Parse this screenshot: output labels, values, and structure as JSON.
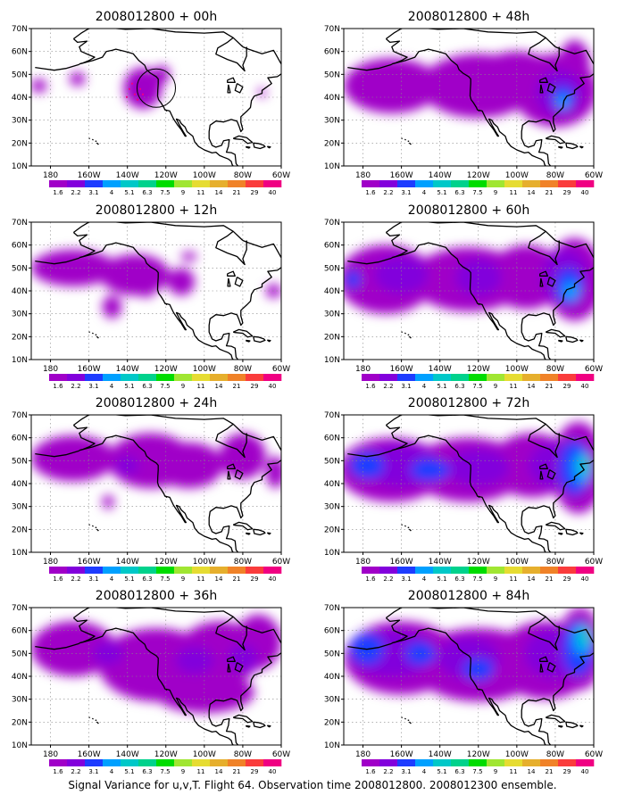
{
  "figure": {
    "caption": "Signal Variance for u,v,T. Flight 64. Observation time 2008012800. 2008012300 ensemble.",
    "lon_labels": [
      "180",
      "160W",
      "140W",
      "120W",
      "100W",
      "80W",
      "60W"
    ],
    "lat_labels": [
      "10N",
      "20N",
      "30N",
      "40N",
      "50N",
      "60N",
      "70N"
    ],
    "colorbar": {
      "labels": [
        "1.6",
        "2.2",
        "3.1",
        "4",
        "5.1",
        "6.3",
        "7.5",
        "9",
        "11",
        "14",
        "21",
        "29",
        "40"
      ],
      "colors": [
        "#a000c8",
        "#8200dc",
        "#1e3cff",
        "#00a0ff",
        "#00c8c8",
        "#00d28c",
        "#00dc00",
        "#a0e632",
        "#e6dc32",
        "#e6af2d",
        "#f08228",
        "#fa3c3c",
        "#f00082"
      ]
    },
    "map": {
      "lon_range": [
        -190,
        -60
      ],
      "lat_range": [
        10,
        70
      ],
      "coastline_color": "#000000",
      "grid": "dotted"
    },
    "panels": [
      {
        "title": "2008012800 + 00h",
        "lead_hours": 0
      },
      {
        "title": "2008012800 + 48h",
        "lead_hours": 48
      },
      {
        "title": "2008012800 + 12h",
        "lead_hours": 12
      },
      {
        "title": "2008012800 + 60h",
        "lead_hours": 60
      },
      {
        "title": "2008012800 + 24h",
        "lead_hours": 24
      },
      {
        "title": "2008012800 + 72h",
        "lead_hours": 72
      },
      {
        "title": "2008012800 + 36h",
        "lead_hours": 36
      },
      {
        "title": "2008012800 + 84h",
        "lead_hours": 84
      }
    ],
    "observation_circle": {
      "panel": 0,
      "lon": -125,
      "lat": 44,
      "radius_deg": 8
    }
  }
}
